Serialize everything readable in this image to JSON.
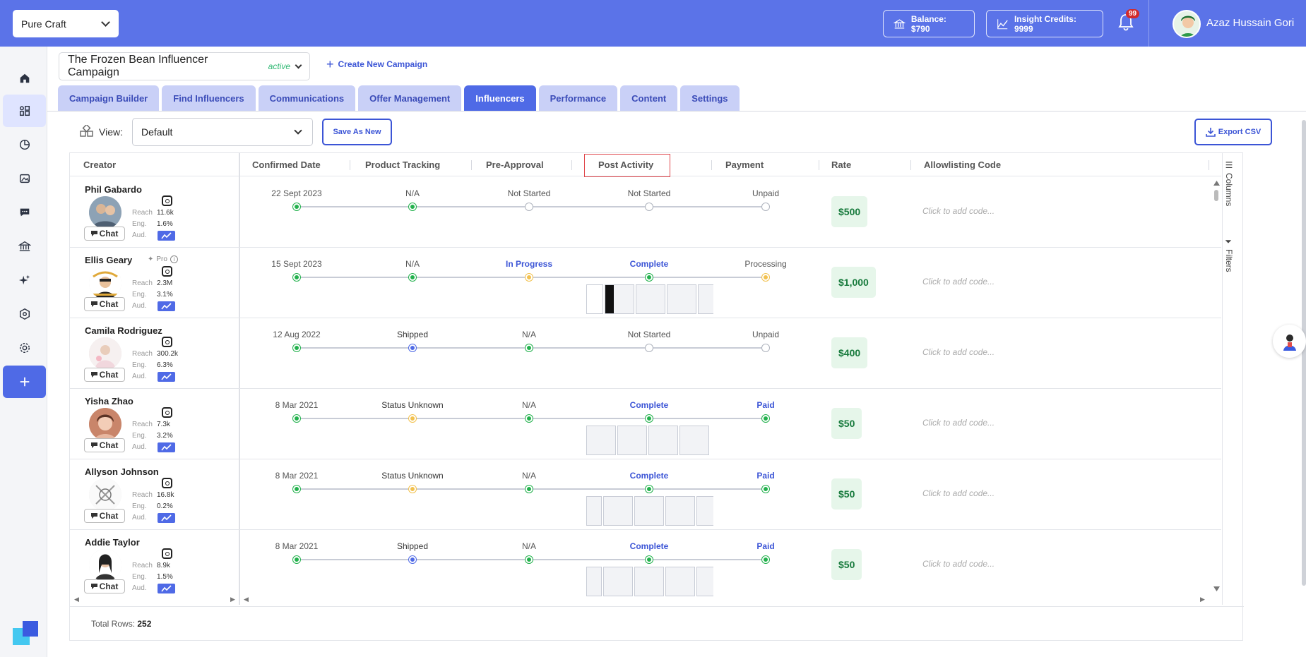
{
  "brand": {
    "selected": "Pure Craft"
  },
  "header": {
    "balance": "Balance: $790",
    "credits": "Insight Credits: 9999",
    "notifications": "99",
    "user_name": "Azaz Hussain Gori"
  },
  "campaign": {
    "name": "The Frozen Bean Influencer Campaign",
    "status": "active",
    "create_label": "Create New Campaign"
  },
  "tabs": [
    {
      "label": "Campaign Builder"
    },
    {
      "label": "Find Influencers"
    },
    {
      "label": "Communications"
    },
    {
      "label": "Offer Management"
    },
    {
      "label": "Influencers",
      "active": true
    },
    {
      "label": "Performance"
    },
    {
      "label": "Content"
    },
    {
      "label": "Settings"
    }
  ],
  "toolbar": {
    "view_label": "View:",
    "view_value": "Default",
    "save_label": "Save As New",
    "export_label": "Export CSV"
  },
  "columns": {
    "creator": "Creator",
    "confirmed": "Confirmed Date",
    "tracking": "Product Tracking",
    "preapproval": "Pre-Approval",
    "post": "Post Activity",
    "payment": "Payment",
    "rate": "Rate",
    "allow": "Allowlisting Code"
  },
  "stat_labels": {
    "reach": "Reach",
    "eng": "Eng.",
    "aud": "Aud.",
    "chat": "Chat",
    "pro": "Pro"
  },
  "rows": [
    {
      "name": "Phil Gabardo",
      "reach": "11.6k",
      "eng": "1.6%",
      "date": "22 Sept 2023",
      "tracking": "N/A",
      "preapproval": "Not Started",
      "post": "Not Started",
      "payment": "Unpaid",
      "rate": "$500",
      "allow": "Click to add code..."
    },
    {
      "name": "Ellis Geary",
      "reach": "2.3M",
      "eng": "3.1%",
      "date": "15 Sept 2023",
      "tracking": "N/A",
      "preapproval": "In Progress",
      "post": "Complete",
      "payment": "Processing",
      "rate": "$1,000",
      "allow": "Click to add code..."
    },
    {
      "name": "Camila Rodriguez",
      "reach": "300.2k",
      "eng": "6.3%",
      "date": "12 Aug 2022",
      "tracking": "Shipped",
      "preapproval": "N/A",
      "post": "Not Started",
      "payment": "Unpaid",
      "rate": "$400",
      "allow": "Click to add code..."
    },
    {
      "name": "Yisha Zhao",
      "reach": "7.3k",
      "eng": "3.2%",
      "date": "8 Mar 2021",
      "tracking": "Status Unknown",
      "preapproval": "N/A",
      "post": "Complete",
      "payment": "Paid",
      "rate": "$50",
      "allow": "Click to add code..."
    },
    {
      "name": "Allyson Johnson",
      "reach": "16.8k",
      "eng": "0.2%",
      "date": "8 Mar 2021",
      "tracking": "Status Unknown",
      "preapproval": "N/A",
      "post": "Complete",
      "payment": "Paid",
      "rate": "$50",
      "allow": "Click to add code..."
    },
    {
      "name": "Addie Taylor",
      "reach": "8.9k",
      "eng": "1.5%",
      "date": "8 Mar 2021",
      "tracking": "Shipped",
      "preapproval": "N/A",
      "post": "Complete",
      "payment": "Paid",
      "rate": "$50",
      "allow": "Click to add code..."
    }
  ],
  "side_tabs": {
    "columns": "Columns",
    "filters": "Filters"
  },
  "footer": {
    "total_label": "Total Rows:",
    "total_value": "252"
  },
  "colors": {
    "accent": "#4f6ae6",
    "topbar": "#5b73e8",
    "success": "#22b14c",
    "pending": "#f2c14e"
  }
}
